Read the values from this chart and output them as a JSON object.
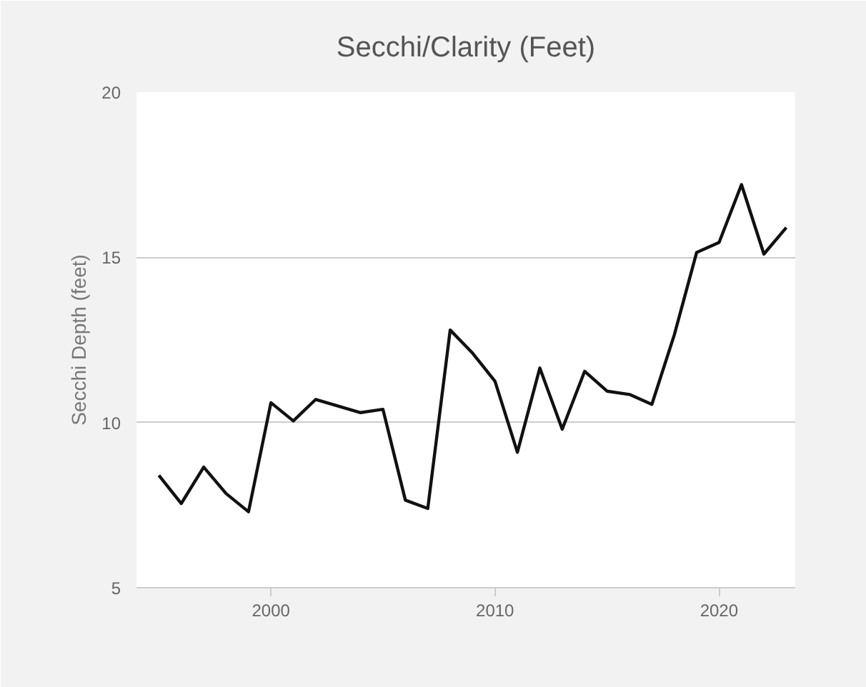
{
  "chart_data": {
    "type": "line",
    "title": "Secchi/Clarity (Feet)",
    "ylabel": "Secchi Depth (feet)",
    "x": [
      1995,
      1996,
      1997,
      1998,
      1999,
      2000,
      2001,
      2002,
      2003,
      2004,
      2005,
      2006,
      2007,
      2008,
      2009,
      2010,
      2011,
      2012,
      2013,
      2014,
      2015,
      2016,
      2017,
      2018,
      2019,
      2020,
      2021,
      2022,
      2023
    ],
    "series": [
      {
        "color": "#111111",
        "values": [
          8.4,
          7.55,
          8.65,
          7.85,
          7.3,
          10.6,
          10.05,
          10.7,
          10.5,
          10.3,
          10.4,
          7.65,
          7.4,
          12.8,
          12.1,
          11.25,
          9.1,
          11.65,
          9.8,
          11.55,
          10.95,
          10.85,
          10.55,
          12.65,
          15.15,
          15.45,
          17.2,
          15.1,
          15.9
        ]
      }
    ],
    "xlim": [
      1994,
      2023.4
    ],
    "xticks": [
      2000,
      2010,
      2020
    ],
    "ylim": [
      5,
      20
    ],
    "yticks": [
      5,
      10,
      15,
      20
    ],
    "grid": "y",
    "marker": "none",
    "line_style": "solid"
  }
}
